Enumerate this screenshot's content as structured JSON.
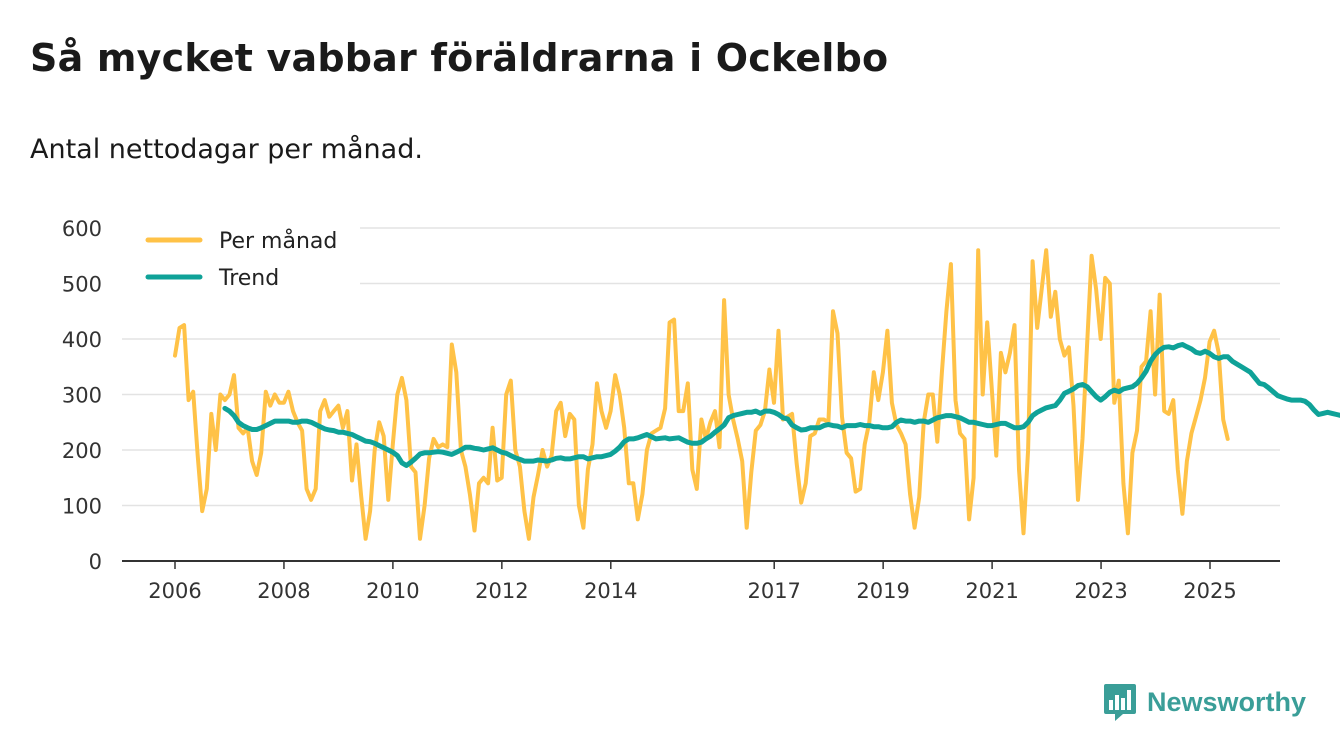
{
  "title": "Så mycket vabbar föräldrarna i Ockelbo",
  "subtitle": "Antal nettodagar per månad.",
  "brand": "Newsworthy",
  "colors": {
    "monthly": "#ffc247",
    "trend": "#0fa298",
    "brand": "#3a9e98",
    "grid": "#e3e3e3"
  },
  "chart_data": {
    "type": "line",
    "title": "Så mycket vabbar föräldrarna i Ockelbo",
    "subtitle": "Antal nettodagar per månad.",
    "xlabel": "",
    "ylabel": "",
    "ylim": [
      0,
      600
    ],
    "yticks": [
      0,
      100,
      200,
      300,
      400,
      500,
      600
    ],
    "xlim": [
      2006.0,
      2025.75
    ],
    "xticks": [
      {
        "value": 2006.0,
        "label": "2006"
      },
      {
        "value": 2008.0,
        "label": "2008"
      },
      {
        "value": 2010.0,
        "label": "2010"
      },
      {
        "value": 2012.0,
        "label": "2012"
      },
      {
        "value": 2014.0,
        "label": "2014"
      },
      {
        "value": 2017.0,
        "label": "2017"
      },
      {
        "value": 2019.0,
        "label": "2019"
      },
      {
        "value": 2021.0,
        "label": "2021"
      },
      {
        "value": 2023.0,
        "label": "2023"
      },
      {
        "value": 2025.0,
        "label": "2025"
      }
    ],
    "grid": true,
    "legend_position": "top-left",
    "series": [
      {
        "name": "Per månad",
        "x_start": 2006.0,
        "step": 0.0833,
        "values": [
          370,
          420,
          425,
          290,
          305,
          190,
          90,
          130,
          265,
          200,
          300,
          290,
          300,
          335,
          240,
          230,
          240,
          180,
          155,
          195,
          305,
          280,
          300,
          285,
          285,
          305,
          270,
          250,
          235,
          130,
          110,
          130,
          270,
          290,
          260,
          270,
          280,
          240,
          270,
          145,
          210,
          120,
          40,
          90,
          200,
          250,
          225,
          110,
          210,
          300,
          330,
          290,
          170,
          160,
          40,
          100,
          185,
          220,
          205,
          210,
          205,
          390,
          340,
          200,
          170,
          120,
          55,
          140,
          150,
          140,
          240,
          145,
          150,
          300,
          325,
          200,
          170,
          90,
          40,
          115,
          155,
          200,
          170,
          190,
          270,
          285,
          225,
          265,
          255,
          100,
          60,
          165,
          210,
          320,
          270,
          240,
          270,
          335,
          300,
          240,
          140,
          140,
          75,
          120,
          200,
          230,
          235,
          240,
          275,
          430,
          435,
          270,
          270,
          320,
          165,
          130,
          255,
          220,
          250,
          270,
          205,
          470,
          300,
          255,
          220,
          180,
          60,
          160,
          235,
          245,
          270,
          345,
          285,
          415,
          255,
          260,
          265,
          175,
          105,
          140,
          225,
          230,
          255,
          255,
          250,
          450,
          410,
          260,
          195,
          185,
          125,
          130,
          210,
          250,
          340,
          290,
          340,
          415,
          285,
          245,
          230,
          210,
          120,
          60,
          115,
          250,
          300,
          300,
          215,
          340,
          450,
          535,
          290,
          230,
          220,
          75,
          150,
          560,
          300,
          430,
          310,
          190,
          375,
          340,
          375,
          425,
          165,
          50,
          200,
          540,
          420,
          490,
          560,
          440,
          485,
          400,
          370,
          385,
          280,
          110,
          220,
          390,
          550,
          490,
          400,
          510,
          500,
          285,
          325,
          140,
          50,
          195,
          235,
          350,
          360,
          450,
          300,
          480,
          270,
          265,
          290,
          165,
          85,
          180,
          230,
          260,
          290,
          330,
          395,
          415,
          375,
          255,
          220
        ]
      },
      {
        "name": "Trend",
        "x_start": 2006.9167,
        "step": 0.0833,
        "values": [
          275,
          270,
          262,
          250,
          244,
          240,
          237,
          237,
          240,
          244,
          248,
          252,
          252,
          252,
          252,
          250,
          250,
          252,
          252,
          250,
          246,
          242,
          238,
          236,
          235,
          232,
          232,
          230,
          228,
          224,
          220,
          216,
          215,
          212,
          208,
          204,
          200,
          196,
          190,
          177,
          172,
          178,
          185,
          193,
          195,
          195,
          196,
          197,
          196,
          194,
          192,
          196,
          200,
          205,
          205,
          203,
          202,
          200,
          202,
          204,
          200,
          196,
          194,
          190,
          186,
          183,
          180,
          180,
          180,
          182,
          181,
          180,
          182,
          185,
          186,
          184,
          184,
          186,
          188,
          188,
          184,
          186,
          188,
          188,
          190,
          192,
          198,
          205,
          215,
          220,
          220,
          222,
          225,
          228,
          224,
          220,
          221,
          222,
          220,
          221,
          222,
          218,
          214,
          212,
          212,
          214,
          220,
          225,
          232,
          238,
          245,
          258,
          262,
          264,
          266,
          268,
          268,
          270,
          266,
          270,
          270,
          268,
          264,
          258,
          256,
          245,
          240,
          236,
          237,
          240,
          240,
          240,
          244,
          246,
          244,
          243,
          240,
          244,
          244,
          244,
          246,
          244,
          244,
          242,
          242,
          240,
          240,
          242,
          250,
          254,
          252,
          252,
          250,
          252,
          252,
          250,
          254,
          258,
          260,
          262,
          262,
          260,
          258,
          254,
          250,
          250,
          248,
          246,
          244,
          244,
          246,
          248,
          248,
          244,
          240,
          240,
          242,
          250,
          262,
          268,
          272,
          276,
          278,
          280,
          290,
          302,
          306,
          310,
          316,
          318,
          314,
          305,
          296,
          290,
          296,
          304,
          308,
          305,
          310,
          312,
          314,
          320,
          330,
          342,
          360,
          372,
          380,
          385,
          386,
          384,
          388,
          390,
          386,
          382,
          376,
          374,
          378,
          374,
          368,
          365,
          368,
          368,
          360,
          355,
          350,
          345,
          340,
          330,
          320,
          318,
          312,
          305,
          298,
          295,
          292,
          290,
          290,
          290,
          288,
          282,
          272,
          264,
          266,
          268,
          266,
          264,
          262
        ]
      }
    ]
  }
}
